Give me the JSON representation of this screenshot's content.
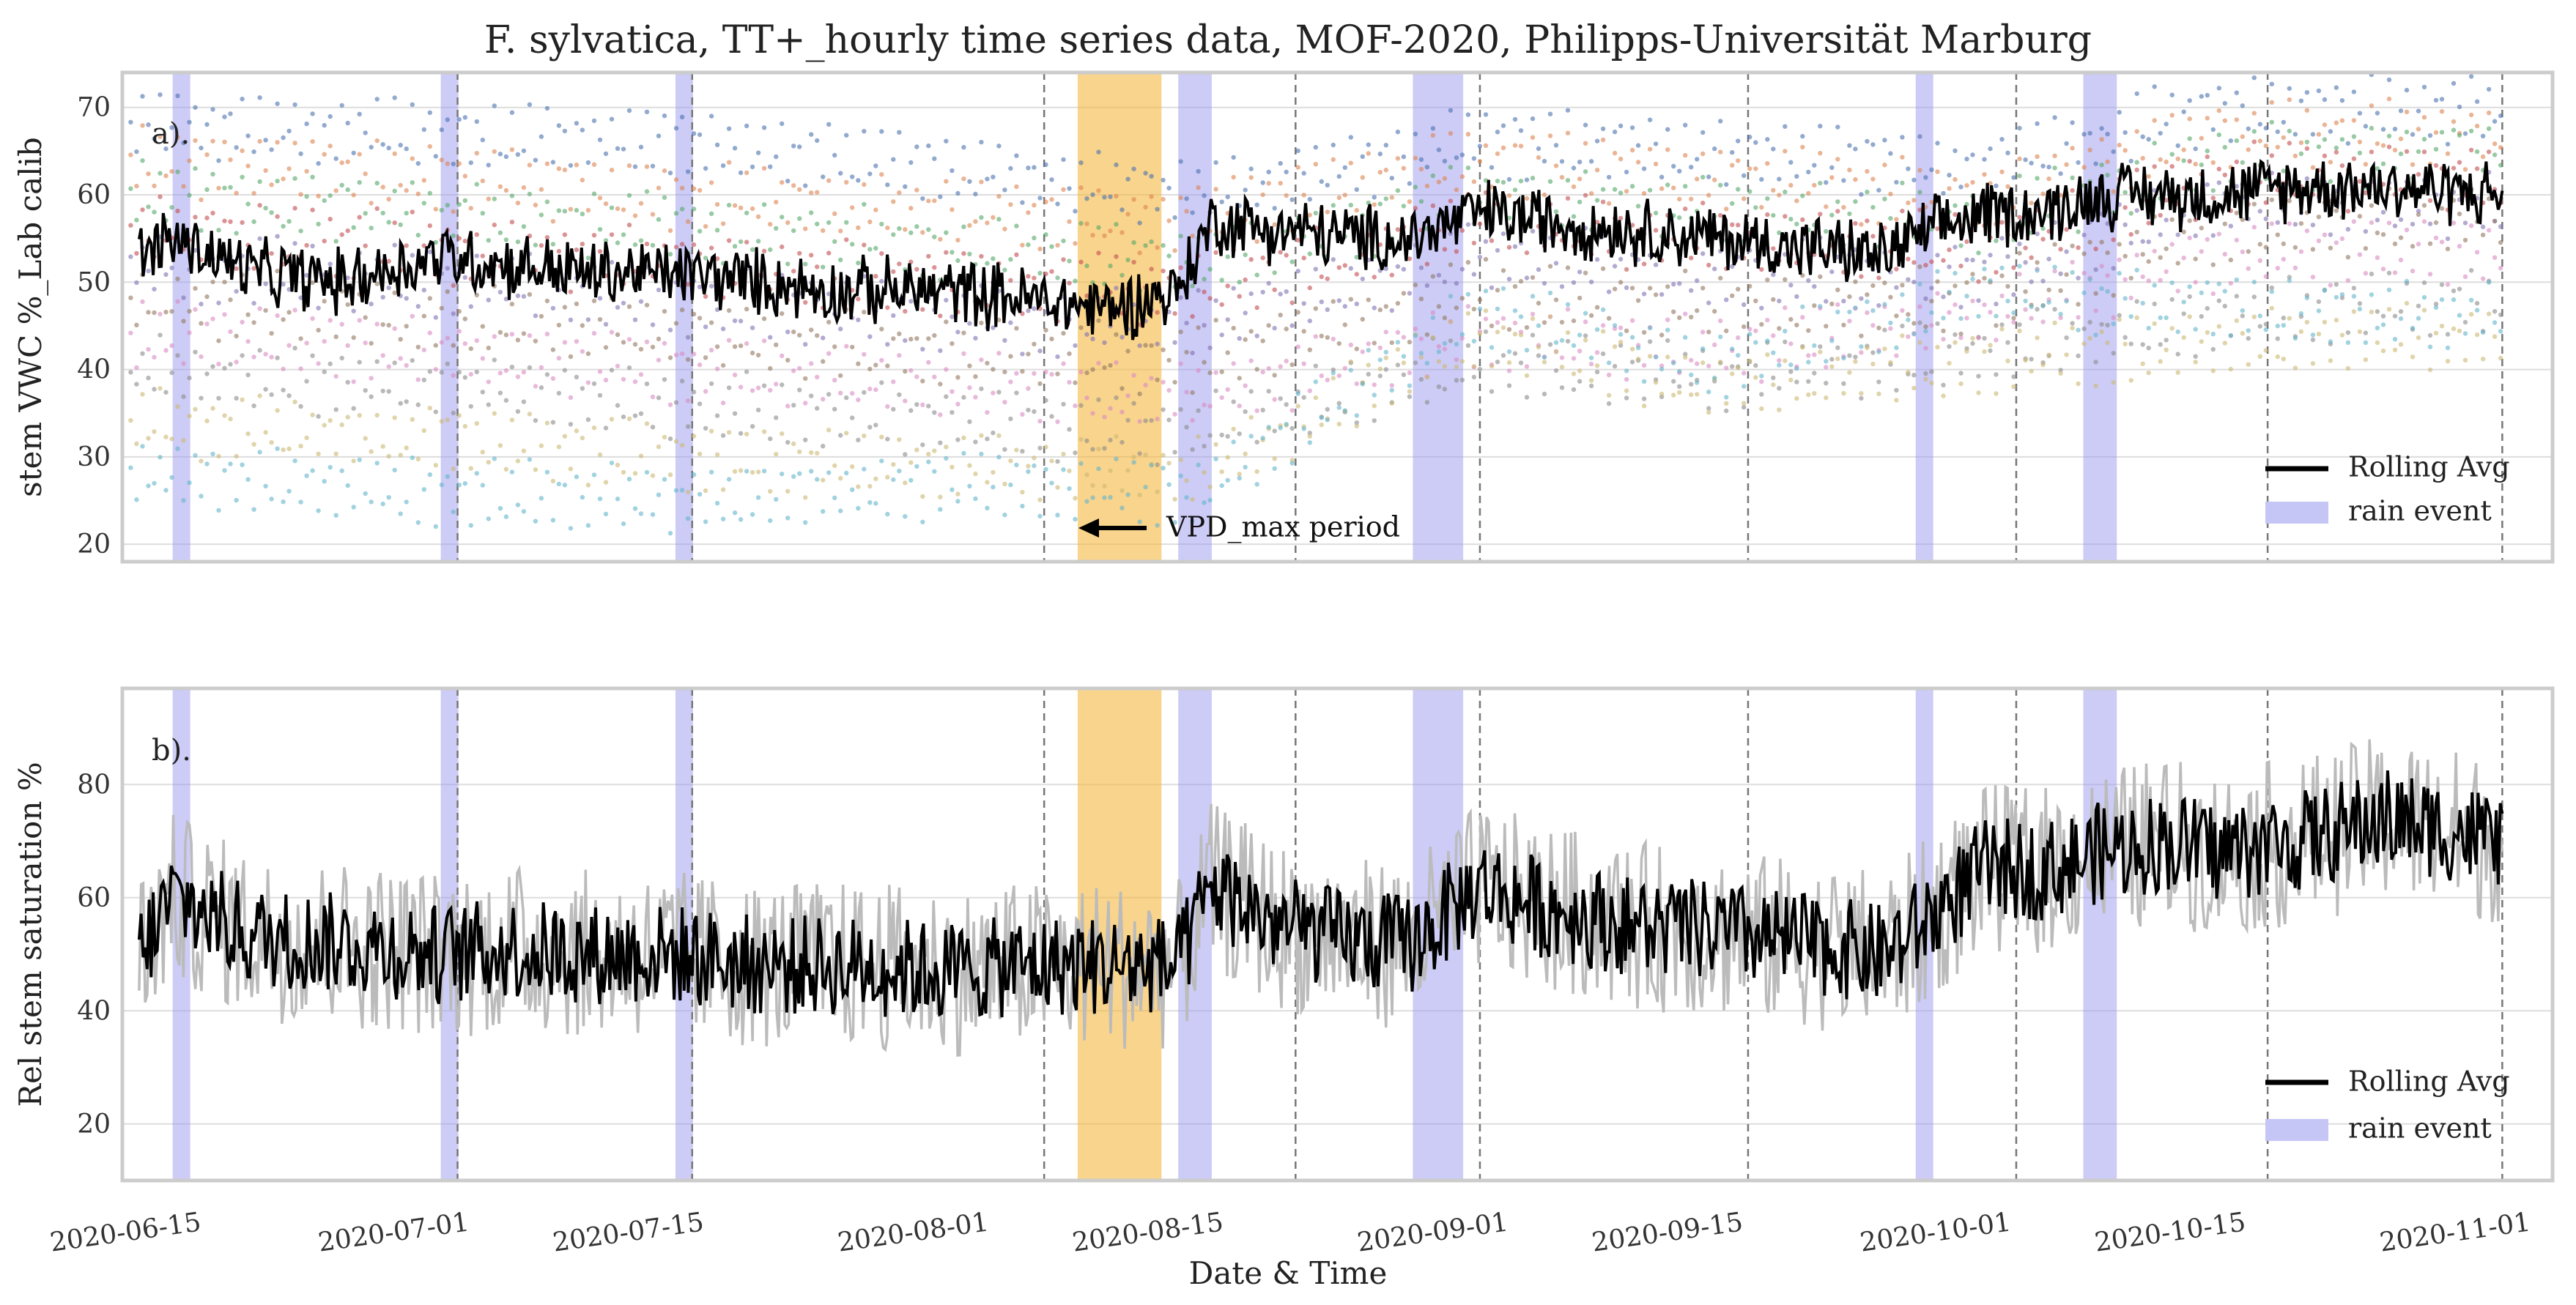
{
  "title": "F. sylvatica, TT+_hourly time series data, MOF-2020, Philipps-Universität Marburg",
  "xlabel": "Date & Time",
  "x_tick_labels": [
    "2020-06-15",
    "2020-07-01",
    "2020-07-15",
    "2020-08-01",
    "2020-08-15",
    "2020-09-01",
    "2020-09-15",
    "2020-10-01",
    "2020-10-15",
    "2020-11-01"
  ],
  "legend": {
    "rolling": "Rolling Avg",
    "rain": "rain event"
  },
  "annotation": {
    "text": "VPD_max period"
  },
  "colors": {
    "rain": "#9999ee",
    "vpd": "#f5b840",
    "rolling": "#000000",
    "raw_b": "#bbbbbb",
    "frame": "#cccccc",
    "grid": "#dddddd",
    "sensors": [
      "#4c72b0",
      "#dd8452",
      "#55a868",
      "#c44e52",
      "#8172b3",
      "#937860",
      "#da8bc3",
      "#8c8c8c",
      "#ccb974",
      "#64b5cd"
    ]
  },
  "chart_data": [
    {
      "type": "line",
      "panel_label": "a).",
      "ylabel": "stem VWC %_Lab calib",
      "xlim": [
        "2020-06-12",
        "2020-11-04"
      ],
      "ylim": [
        18,
        74
      ],
      "yticks": [
        20,
        30,
        40,
        50,
        60,
        70
      ],
      "grid": true,
      "legend_position": "bottom-right",
      "vertical_markers": [
        "2020-06-12",
        "2020-07-02",
        "2020-07-16",
        "2020-08-06",
        "2020-08-21",
        "2020-09-01",
        "2020-09-17",
        "2020-10-03",
        "2020-10-18",
        "2020-11-01"
      ],
      "rain_events": [
        [
          "2020-06-15",
          "2020-06-16"
        ],
        [
          "2020-07-01",
          "2020-07-02"
        ],
        [
          "2020-07-15",
          "2020-07-16"
        ],
        [
          "2020-08-14",
          "2020-08-16"
        ],
        [
          "2020-08-28",
          "2020-08-31"
        ],
        [
          "2020-09-27",
          "2020-09-28"
        ],
        [
          "2020-10-07",
          "2020-10-09"
        ]
      ],
      "vpd_max_period": [
        "2020-08-08",
        "2020-08-13"
      ],
      "series": [
        {
          "name": "Rolling Avg",
          "x": [
            "2020-06-12",
            "2020-06-15",
            "2020-06-20",
            "2020-06-25",
            "2020-07-01",
            "2020-07-05",
            "2020-07-10",
            "2020-07-15",
            "2020-07-20",
            "2020-07-25",
            "2020-08-01",
            "2020-08-05",
            "2020-08-10",
            "2020-08-14",
            "2020-08-16",
            "2020-08-20",
            "2020-08-25",
            "2020-08-28",
            "2020-09-01",
            "2020-09-05",
            "2020-09-10",
            "2020-09-15",
            "2020-09-20",
            "2020-09-25",
            "2020-09-27",
            "2020-10-01",
            "2020-10-05",
            "2020-10-08",
            "2020-10-12",
            "2020-10-15",
            "2020-10-20",
            "2020-10-25",
            "2020-11-01"
          ],
          "values": [
            52,
            55,
            51,
            50,
            53,
            52,
            51,
            51,
            50,
            49,
            49,
            48,
            47,
            49,
            57,
            56,
            55,
            55,
            58,
            57,
            56,
            55,
            54,
            53,
            55,
            58,
            58,
            60,
            60,
            60,
            61,
            61,
            60
          ]
        },
        {
          "name": "",
          "x": [
            "2020-06-12",
            "2020-07-01",
            "2020-07-15",
            "2020-08-01",
            "2020-08-15",
            "2020-09-01",
            "2020-09-15",
            "2020-10-01",
            "2020-10-15",
            "2020-11-01"
          ],
          "values": [
            68,
            67,
            66,
            63,
            60,
            66,
            65,
            63,
            70,
            70
          ]
        },
        {
          "name": "",
          "x": [
            "2020-06-12",
            "2020-07-01",
            "2020-07-15",
            "2020-08-01",
            "2020-08-15",
            "2020-09-01",
            "2020-09-15",
            "2020-10-01",
            "2020-10-15",
            "2020-11-01"
          ],
          "values": [
            64,
            62,
            60,
            58,
            57,
            64,
            62,
            60,
            67,
            67
          ]
        },
        {
          "name": "",
          "x": [
            "2020-06-12",
            "2020-07-01",
            "2020-07-15",
            "2020-08-01",
            "2020-08-15",
            "2020-09-01",
            "2020-09-15",
            "2020-10-01",
            "2020-10-15",
            "2020-11-01"
          ],
          "values": [
            60,
            58,
            56,
            54,
            52,
            60,
            58,
            57,
            64,
            65
          ]
        },
        {
          "name": "",
          "x": [
            "2020-06-12",
            "2020-07-01",
            "2020-07-15",
            "2020-08-01",
            "2020-08-15",
            "2020-09-01",
            "2020-09-15",
            "2020-10-01",
            "2020-10-15",
            "2020-11-01"
          ],
          "values": [
            56,
            54,
            52,
            50,
            49,
            57,
            55,
            54,
            62,
            62
          ]
        },
        {
          "name": "",
          "x": [
            "2020-06-12",
            "2020-07-01",
            "2020-07-15",
            "2020-08-01",
            "2020-08-15",
            "2020-09-01",
            "2020-09-15",
            "2020-10-01",
            "2020-10-15",
            "2020-11-01"
          ],
          "values": [
            52,
            50,
            48,
            46,
            45,
            53,
            51,
            51,
            59,
            59
          ]
        },
        {
          "name": "",
          "x": [
            "2020-06-12",
            "2020-07-01",
            "2020-07-15",
            "2020-08-01",
            "2020-08-15",
            "2020-09-01",
            "2020-09-15",
            "2020-10-01",
            "2020-10-15",
            "2020-11-01"
          ],
          "values": [
            48,
            46,
            44,
            42,
            41,
            49,
            47,
            48,
            56,
            57
          ]
        },
        {
          "name": "",
          "x": [
            "2020-06-12",
            "2020-07-01",
            "2020-07-15",
            "2020-08-01",
            "2020-08-15",
            "2020-09-01",
            "2020-09-15",
            "2020-10-01",
            "2020-10-15",
            "2020-11-01"
          ],
          "values": [
            44,
            42,
            40,
            38,
            37,
            44,
            42,
            46,
            53,
            54
          ]
        },
        {
          "name": "",
          "x": [
            "2020-06-12",
            "2020-07-01",
            "2020-07-15",
            "2020-08-01",
            "2020-08-15",
            "2020-09-01",
            "2020-09-15",
            "2020-10-01",
            "2020-10-15",
            "2020-11-01"
          ],
          "values": [
            40,
            38,
            36,
            34,
            33,
            41,
            39,
            42,
            46,
            48
          ]
        },
        {
          "name": "",
          "x": [
            "2020-06-12",
            "2020-07-01",
            "2020-07-15",
            "2020-08-01",
            "2020-08-15",
            "2020-09-01",
            "2020-09-15",
            "2020-10-01",
            "2020-10-15",
            "2020-11-01"
          ],
          "values": [
            34,
            32,
            30,
            29,
            28,
            44,
            38,
            41,
            43,
            44
          ]
        },
        {
          "name": "",
          "x": [
            "2020-06-12",
            "2020-07-01",
            "2020-07-15",
            "2020-08-01",
            "2020-08-15",
            "2020-09-01",
            "2020-09-15",
            "2020-10-01",
            "2020-10-15",
            "2020-11-01"
          ],
          "values": [
            28,
            26,
            25,
            27,
            26,
            47,
            40,
            49,
            47,
            46
          ]
        }
      ]
    },
    {
      "type": "line",
      "panel_label": "b).",
      "ylabel": "Rel stem saturation %",
      "xlim": [
        "2020-06-12",
        "2020-11-04"
      ],
      "ylim": [
        10,
        97
      ],
      "yticks": [
        20,
        40,
        60,
        80
      ],
      "grid": true,
      "legend_position": "bottom-right",
      "vertical_markers": [
        "2020-06-12",
        "2020-07-02",
        "2020-07-16",
        "2020-08-06",
        "2020-08-21",
        "2020-09-01",
        "2020-09-17",
        "2020-10-03",
        "2020-10-18",
        "2020-11-01"
      ],
      "rain_events": [
        [
          "2020-06-15",
          "2020-06-16"
        ],
        [
          "2020-07-01",
          "2020-07-02"
        ],
        [
          "2020-07-15",
          "2020-07-16"
        ],
        [
          "2020-08-14",
          "2020-08-16"
        ],
        [
          "2020-08-28",
          "2020-08-31"
        ],
        [
          "2020-09-27",
          "2020-09-28"
        ],
        [
          "2020-10-07",
          "2020-10-09"
        ]
      ],
      "vpd_max_period": [
        "2020-08-08",
        "2020-08-13"
      ],
      "series": [
        {
          "name": "Rolling Avg",
          "x": [
            "2020-06-12",
            "2020-06-15",
            "2020-06-20",
            "2020-06-25",
            "2020-07-01",
            "2020-07-05",
            "2020-07-10",
            "2020-07-15",
            "2020-07-20",
            "2020-07-25",
            "2020-08-01",
            "2020-08-05",
            "2020-08-10",
            "2020-08-14",
            "2020-08-16",
            "2020-08-20",
            "2020-08-25",
            "2020-08-28",
            "2020-09-01",
            "2020-09-05",
            "2020-09-10",
            "2020-09-15",
            "2020-09-20",
            "2020-09-25",
            "2020-09-27",
            "2020-10-01",
            "2020-10-05",
            "2020-10-08",
            "2020-10-12",
            "2020-10-15",
            "2020-10-20",
            "2020-10-25",
            "2020-11-01"
          ],
          "values": [
            45,
            60,
            53,
            52,
            50,
            51,
            50,
            50,
            48,
            48,
            47,
            48,
            48,
            48,
            62,
            55,
            52,
            52,
            62,
            58,
            55,
            54,
            52,
            50,
            54,
            65,
            65,
            68,
            70,
            68,
            70,
            74,
            70
          ]
        },
        {
          "name": "",
          "x": [
            "2020-06-12",
            "2020-06-15",
            "2020-06-20",
            "2020-06-25",
            "2020-07-01",
            "2020-07-05",
            "2020-07-10",
            "2020-07-15",
            "2020-07-20",
            "2020-07-25",
            "2020-08-01",
            "2020-08-05",
            "2020-08-10",
            "2020-08-14",
            "2020-08-16",
            "2020-08-20",
            "2020-08-25",
            "2020-08-28",
            "2020-09-01",
            "2020-09-05",
            "2020-09-10",
            "2020-09-15",
            "2020-09-20",
            "2020-09-25",
            "2020-09-27",
            "2020-10-01",
            "2020-10-05",
            "2020-10-08",
            "2020-10-12",
            "2020-10-15",
            "2020-10-20",
            "2020-10-25",
            "2020-11-01"
          ],
          "values": [
            45,
            60,
            53,
            52,
            50,
            51,
            50,
            50,
            48,
            48,
            47,
            48,
            48,
            48,
            62,
            55,
            52,
            52,
            62,
            58,
            55,
            54,
            52,
            50,
            54,
            65,
            65,
            68,
            70,
            68,
            70,
            74,
            70
          ]
        }
      ]
    }
  ]
}
